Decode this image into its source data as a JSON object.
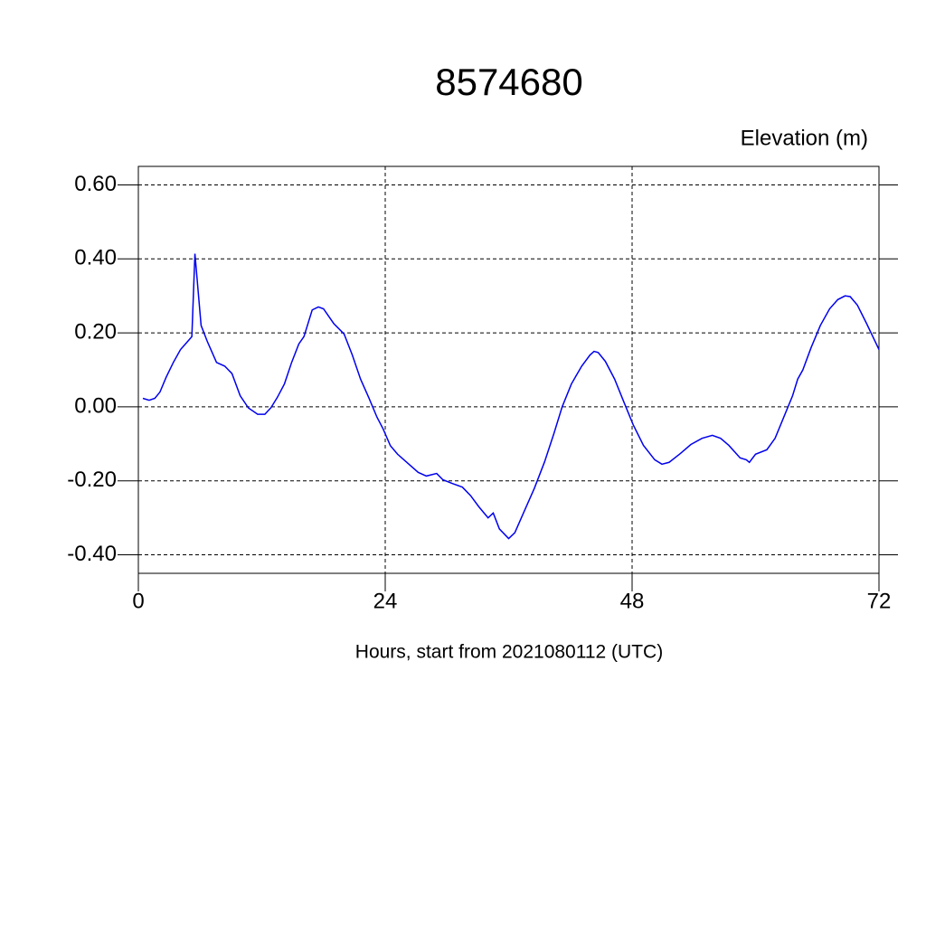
{
  "chart_data": {
    "type": "line",
    "title": "8574680",
    "subtitle": "Elevation (m)",
    "x_label": "Hours, start from 2021080112 (UTC)",
    "xlim": [
      0,
      72
    ],
    "xticks": [
      0,
      24,
      48,
      72
    ],
    "ylim": [
      -0.45,
      0.65
    ],
    "yticks": [
      {
        "value": 0.6,
        "label": "0.60"
      },
      {
        "value": 0.4,
        "label": "0.40"
      },
      {
        "value": 0.2,
        "label": "0.20"
      },
      {
        "value": 0,
        "label": "0.00"
      },
      {
        "value": -0.2,
        "label": "-0.20"
      },
      {
        "value": -0.4,
        "label": "-0.40"
      }
    ],
    "grid": true,
    "series": [
      {
        "color": "#0000ee",
        "x": [
          0.44,
          1.05,
          1.6,
          2.1,
          2.7,
          3.4,
          4.1,
          4.8,
          5.2,
          5.5,
          6.1,
          6.7,
          7.6,
          8.4,
          9.1,
          9.9,
          10.7,
          11.6,
          12.3,
          12.9,
          13.5,
          14.2,
          14.9,
          15.6,
          16.1,
          16.9,
          17.5,
          18,
          19,
          20,
          20.8,
          21.6,
          22.4,
          23.2,
          23.8,
          24.5,
          25.2,
          26.3,
          27.2,
          28,
          29,
          29.6,
          30.5,
          31.5,
          32.3,
          33.1,
          34,
          34.5,
          35.1,
          36,
          36.6,
          37.5,
          38.5,
          39.5,
          40.4,
          41.2,
          42.1,
          43.1,
          43.9,
          44.3,
          44.7,
          45.4,
          46.3,
          47.2,
          48.1,
          49.1,
          50.2,
          50.9,
          51.6,
          52.7,
          53.7,
          54.8,
          55.8,
          56.6,
          57.4,
          58.5,
          59.1,
          59.4,
          60,
          61.1,
          61.9,
          62.7,
          63.6,
          64.1,
          64.6,
          65.4,
          66.3,
          67.2,
          68,
          68.7,
          69.2,
          69.9,
          70.8,
          72
        ],
        "values": [
          0.023,
          0.018,
          0.023,
          0.04,
          0.08,
          0.12,
          0.155,
          0.177,
          0.19,
          0.414,
          0.22,
          0.177,
          0.12,
          0.11,
          0.09,
          0.03,
          -0.003,
          -0.02,
          -0.02,
          -0.002,
          0.025,
          0.062,
          0.12,
          0.17,
          0.19,
          0.262,
          0.27,
          0.265,
          0.225,
          0.197,
          0.14,
          0.075,
          0.025,
          -0.028,
          -0.06,
          -0.105,
          -0.128,
          -0.155,
          -0.177,
          -0.187,
          -0.18,
          -0.197,
          -0.207,
          -0.217,
          -0.24,
          -0.27,
          -0.3,
          -0.287,
          -0.33,
          -0.356,
          -0.34,
          -0.283,
          -0.22,
          -0.148,
          -0.072,
          0,
          0.062,
          0.11,
          0.14,
          0.15,
          0.147,
          0.123,
          0.075,
          0.013,
          -0.048,
          -0.104,
          -0.143,
          -0.155,
          -0.15,
          -0.126,
          -0.102,
          -0.085,
          -0.077,
          -0.085,
          -0.104,
          -0.138,
          -0.143,
          -0.15,
          -0.128,
          -0.116,
          -0.085,
          -0.031,
          0.03,
          0.075,
          0.1,
          0.16,
          0.22,
          0.265,
          0.29,
          0.3,
          0.298,
          0.275,
          0.225,
          0.155
        ]
      }
    ]
  }
}
